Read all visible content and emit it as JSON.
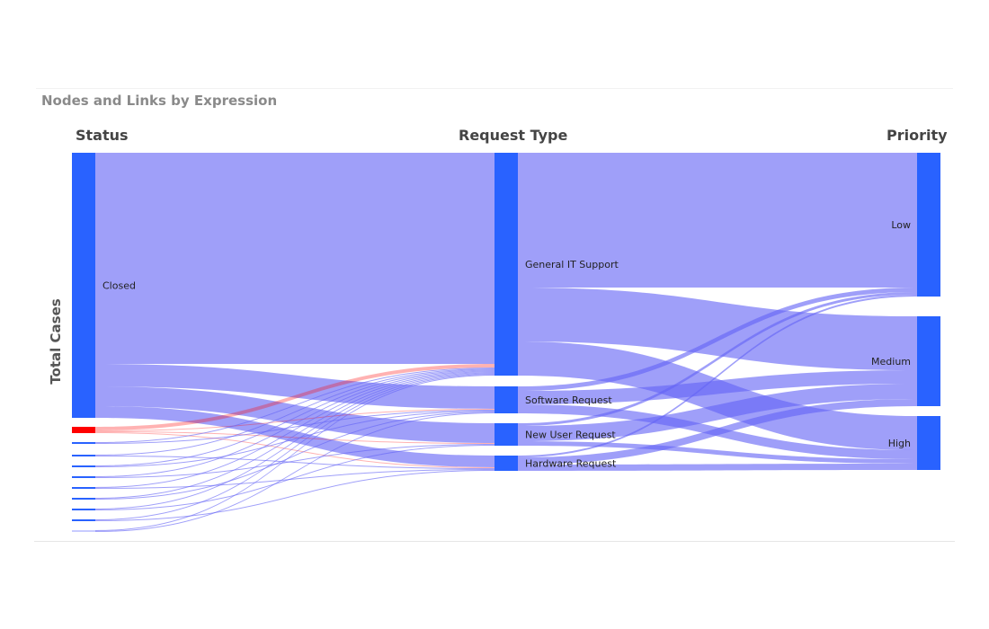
{
  "chart_data": {
    "type": "sankey",
    "title": "Nodes and Links by Expression",
    "ylabel": "Total Cases",
    "columns": [
      "Status",
      "Request Type",
      "Priority"
    ],
    "nodes": [
      {
        "id": "closed",
        "label": "Closed",
        "column": 0,
        "color": "#2962ff"
      },
      {
        "id": "s2",
        "label": "",
        "column": 0,
        "color": "#ff0000"
      },
      {
        "id": "s3",
        "label": "",
        "column": 0,
        "color": "#2962ff"
      },
      {
        "id": "s4",
        "label": "",
        "column": 0,
        "color": "#2962ff"
      },
      {
        "id": "s5",
        "label": "",
        "column": 0,
        "color": "#2962ff"
      },
      {
        "id": "s6",
        "label": "",
        "column": 0,
        "color": "#2962ff"
      },
      {
        "id": "s7",
        "label": "",
        "column": 0,
        "color": "#2962ff"
      },
      {
        "id": "s8",
        "label": "",
        "column": 0,
        "color": "#2962ff"
      },
      {
        "id": "s9",
        "label": "",
        "column": 0,
        "color": "#2962ff"
      },
      {
        "id": "s10",
        "label": "",
        "column": 0,
        "color": "#2962ff"
      },
      {
        "id": "s11",
        "label": "",
        "column": 0,
        "color": "#c8ccff"
      },
      {
        "id": "git",
        "label": "General IT Support",
        "column": 1,
        "color": "#2962ff"
      },
      {
        "id": "sw",
        "label": "Software Request",
        "column": 1,
        "color": "#2962ff"
      },
      {
        "id": "nu",
        "label": "New User Request",
        "column": 1,
        "color": "#2962ff"
      },
      {
        "id": "hw",
        "label": "Hardware Request",
        "column": 1,
        "color": "#2962ff"
      },
      {
        "id": "low",
        "label": "Low",
        "column": 2,
        "color": "#2962ff"
      },
      {
        "id": "med",
        "label": "Medium",
        "column": 2,
        "color": "#2962ff"
      },
      {
        "id": "high",
        "label": "High",
        "column": 2,
        "color": "#2962ff"
      }
    ],
    "links": [
      {
        "source": "closed",
        "target": "git",
        "value": 235
      },
      {
        "source": "closed",
        "target": "sw",
        "value": 25
      },
      {
        "source": "closed",
        "target": "nu",
        "value": 22
      },
      {
        "source": "closed",
        "target": "hw",
        "value": 13
      },
      {
        "source": "s2",
        "target": "git",
        "value": 4
      },
      {
        "source": "s2",
        "target": "sw",
        "value": 1
      },
      {
        "source": "s2",
        "target": "nu",
        "value": 1
      },
      {
        "source": "s2",
        "target": "hw",
        "value": 1
      },
      {
        "source": "s3",
        "target": "git",
        "value": 1
      },
      {
        "source": "s3",
        "target": "sw",
        "value": 1
      },
      {
        "source": "s4",
        "target": "git",
        "value": 1
      },
      {
        "source": "s4",
        "target": "hw",
        "value": 1
      },
      {
        "source": "s5",
        "target": "git",
        "value": 1
      },
      {
        "source": "s5",
        "target": "sw",
        "value": 1
      },
      {
        "source": "s6",
        "target": "git",
        "value": 1
      },
      {
        "source": "s6",
        "target": "nu",
        "value": 1
      },
      {
        "source": "s7",
        "target": "git",
        "value": 1
      },
      {
        "source": "s7",
        "target": "hw",
        "value": 1
      },
      {
        "source": "s8",
        "target": "git",
        "value": 1
      },
      {
        "source": "s8",
        "target": "sw",
        "value": 1
      },
      {
        "source": "s9",
        "target": "git",
        "value": 1
      },
      {
        "source": "s9",
        "target": "nu",
        "value": 1
      },
      {
        "source": "s10",
        "target": "git",
        "value": 1
      },
      {
        "source": "s10",
        "target": "hw",
        "value": 1
      },
      {
        "source": "s11",
        "target": "git",
        "value": 1
      },
      {
        "source": "s11",
        "target": "sw",
        "value": 1
      },
      {
        "source": "git",
        "target": "low",
        "value": 150
      },
      {
        "source": "git",
        "target": "med",
        "value": 60
      },
      {
        "source": "git",
        "target": "high",
        "value": 38
      },
      {
        "source": "sw",
        "target": "low",
        "value": 5
      },
      {
        "source": "sw",
        "target": "med",
        "value": 15
      },
      {
        "source": "sw",
        "target": "high",
        "value": 10
      },
      {
        "source": "nu",
        "target": "low",
        "value": 3
      },
      {
        "source": "nu",
        "target": "med",
        "value": 17
      },
      {
        "source": "nu",
        "target": "high",
        "value": 5
      },
      {
        "source": "hw",
        "target": "low",
        "value": 2
      },
      {
        "source": "hw",
        "target": "med",
        "value": 8
      },
      {
        "source": "hw",
        "target": "high",
        "value": 7
      }
    ],
    "link_color": "#6464f5",
    "highlight_color": "#ff0000"
  }
}
